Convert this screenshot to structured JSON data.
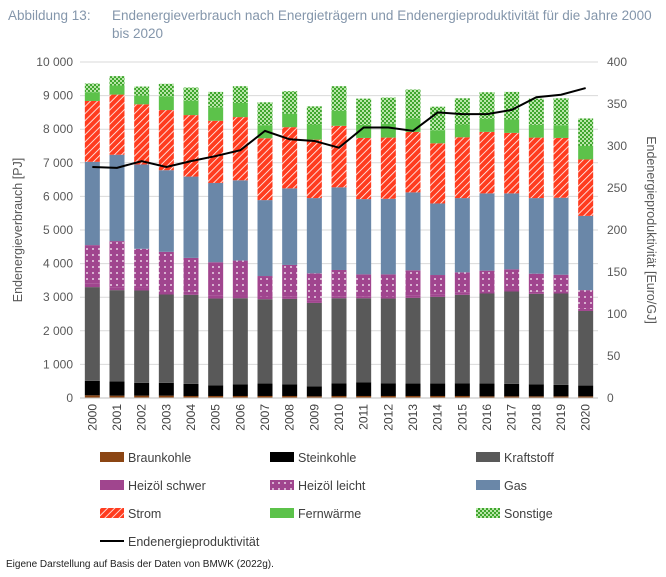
{
  "caption": {
    "label": "Abbildung 13:",
    "title": "Endenergieverbrauch nach Energieträgern und Endenergieproduktivität für die Jahre 2000 bis 2020"
  },
  "footnote": "Eigene Darstellung auf Basis der Daten von BMWK (2022g).",
  "chart_data": {
    "type": "bar",
    "stacked": true,
    "categories": [
      "2000",
      "2001",
      "2002",
      "2003",
      "2004",
      "2005",
      "2006",
      "2007",
      "2008",
      "2009",
      "2010",
      "2011",
      "2012",
      "2013",
      "2014",
      "2015",
      "2016",
      "2017",
      "2018",
      "2019",
      "2020"
    ],
    "ylabel": "Endenergieverbrauch [PJ]",
    "y2label": "Endenergieproduktivität [Euro/GJ]",
    "ylim": [
      0,
      10000
    ],
    "y2lim": [
      0,
      400
    ],
    "yticks": [
      "0",
      "1 000",
      "2 000",
      "3 000",
      "4 000",
      "5 000",
      "6 000",
      "7 000",
      "8 000",
      "9 000",
      "10 000"
    ],
    "y2ticks": [
      "0",
      "50",
      "100",
      "150",
      "200",
      "250",
      "300",
      "350",
      "400"
    ],
    "grid": true,
    "legend_position": "bottom",
    "series": [
      {
        "name": "Braunkohle",
        "color": "#8b4513",
        "pattern": "solid",
        "values": [
          80,
          70,
          70,
          70,
          60,
          60,
          60,
          60,
          60,
          50,
          60,
          60,
          60,
          60,
          60,
          60,
          50,
          50,
          50,
          50,
          50
        ]
      },
      {
        "name": "Steinkohle",
        "color": "#000000",
        "pattern": "solid",
        "values": [
          430,
          420,
          380,
          380,
          360,
          320,
          350,
          370,
          350,
          300,
          380,
          410,
          380,
          370,
          370,
          380,
          380,
          370,
          360,
          340,
          320
        ]
      },
      {
        "name": "Kraftstoff",
        "color": "#595959",
        "pattern": "solid",
        "values": [
          2790,
          2720,
          2750,
          2630,
          2650,
          2580,
          2560,
          2510,
          2540,
          2480,
          2530,
          2500,
          2520,
          2550,
          2580,
          2630,
          2680,
          2750,
          2690,
          2720,
          2220
        ]
      },
      {
        "name": "Heizöl schwer",
        "color": "#a0458e",
        "pattern": "solid",
        "values": [
          100,
          90,
          90,
          90,
          90,
          80,
          80,
          80,
          80,
          60,
          60,
          60,
          60,
          60,
          60,
          60,
          60,
          60,
          60,
          60,
          60
        ]
      },
      {
        "name": "Heizöl leicht",
        "color": "#a0458e",
        "pattern": "dots",
        "values": [
          1150,
          1370,
          1150,
          1180,
          1010,
          1000,
          1040,
          610,
          930,
          820,
          780,
          650,
          660,
          760,
          590,
          610,
          620,
          600,
          540,
          500,
          560
        ]
      },
      {
        "name": "Gas",
        "color": "#6a87a8",
        "pattern": "solid",
        "values": [
          2480,
          2570,
          2510,
          2430,
          2420,
          2360,
          2390,
          2260,
          2280,
          2240,
          2460,
          2240,
          2250,
          2320,
          2130,
          2210,
          2300,
          2260,
          2250,
          2290,
          2210
        ]
      },
      {
        "name": "Strom",
        "color": "#ff3c1f",
        "pattern": "hatch",
        "values": [
          1810,
          1790,
          1790,
          1790,
          1830,
          1850,
          1880,
          1840,
          1820,
          1740,
          1830,
          1820,
          1820,
          1800,
          1790,
          1810,
          1830,
          1800,
          1800,
          1780,
          1680
        ]
      },
      {
        "name": "Fernwärme",
        "color": "#5cc24a",
        "pattern": "solid",
        "values": [
          260,
          270,
          260,
          410,
          430,
          400,
          420,
          390,
          400,
          450,
          450,
          390,
          410,
          400,
          390,
          380,
          390,
          400,
          380,
          380,
          400
        ]
      },
      {
        "name": "Sonstige",
        "color": "#3fa62e",
        "pattern": "checker",
        "values": [
          260,
          280,
          270,
          370,
          390,
          460,
          500,
          680,
          670,
          540,
          730,
          780,
          780,
          860,
          700,
          780,
          790,
          820,
          780,
          800,
          820
        ]
      }
    ],
    "line_series": {
      "name": "Endenergieproduktivität",
      "color": "#000000",
      "axis": "right",
      "values": [
        275,
        274,
        282,
        275,
        282,
        288,
        295,
        318,
        308,
        306,
        298,
        322,
        322,
        318,
        340,
        338,
        338,
        343,
        358,
        361,
        369
      ]
    }
  }
}
